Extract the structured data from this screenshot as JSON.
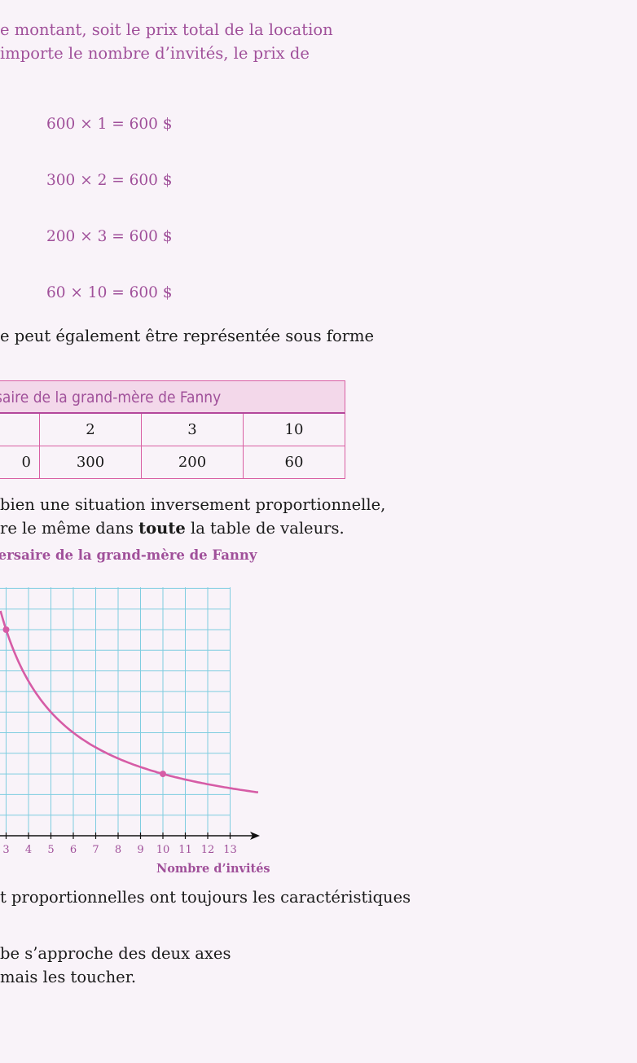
{
  "intro": {
    "line1": "e montant, soit le prix total de la location",
    "line2": "importe le nombre d’invités, le prix de"
  },
  "equations": [
    "600 × 1 = 600 $",
    "300 × 2 = 600 $",
    "200 × 3 = 600 $",
    "60 × 10 = 600 $"
  ],
  "para_table": "e peut également être représentée sous forme",
  "table": {
    "title": "rsaire de la grand-mère de Fanny",
    "row1": [
      "",
      "2",
      "3",
      "10"
    ],
    "row2": [
      "0",
      "300",
      "200",
      "60"
    ]
  },
  "para2": {
    "line1": "bien une situation inversement proportionnelle,",
    "line2_a": "re le même dans ",
    "line2_bold": "toute",
    "line2_b": " la table de valeurs."
  },
  "chart_title": "versaire de la grand-mère de Fanny",
  "chart_data": {
    "type": "line",
    "xlabel": "Nombre d’invités",
    "x_ticks": [
      "3",
      "4",
      "5",
      "6",
      "7",
      "8",
      "9",
      "10",
      "11",
      "12",
      "13"
    ],
    "x": [
      3,
      4,
      5,
      6,
      7,
      8,
      9,
      10,
      11,
      12,
      13,
      14
    ],
    "y": [
      200,
      150,
      120,
      100,
      86,
      75,
      67,
      60,
      55,
      50,
      46,
      43
    ],
    "points": [
      {
        "x": 3,
        "y": 200
      },
      {
        "x": 10,
        "y": 60
      }
    ],
    "grid": true
  },
  "para3": "t proportionnelles ont toujours les caractéristiques",
  "para4": {
    "line1": "be s’approche des deux axes",
    "line2": "mais les toucher."
  },
  "colors": {
    "accent": "#a0509a",
    "curve": "#d65ca6",
    "grid": "#7fcde0"
  }
}
